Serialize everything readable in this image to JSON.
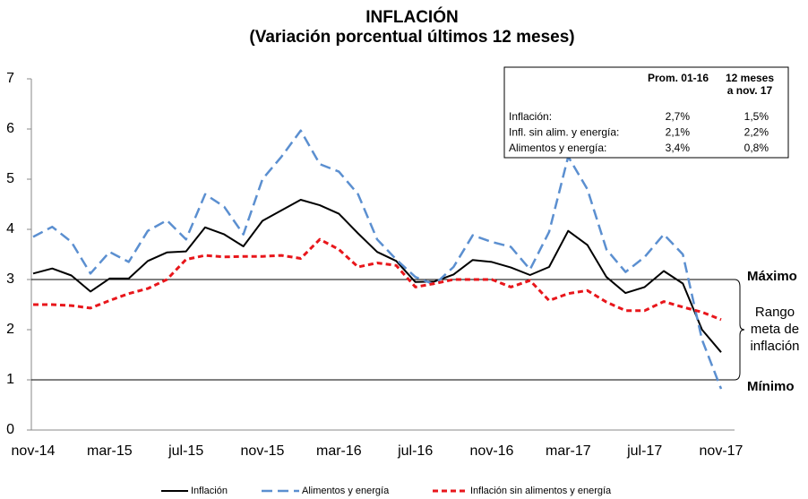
{
  "chart_data": {
    "type": "line",
    "title": "INFLACIÓN",
    "subtitle": "(Variación porcentual últimos 12 meses)",
    "categories": [
      "nov-14",
      null,
      null,
      null,
      "mar-15",
      null,
      null,
      null,
      "jul-15",
      null,
      null,
      null,
      "nov-15",
      null,
      null,
      null,
      "mar-16",
      null,
      null,
      null,
      "jul-16",
      null,
      null,
      null,
      "nov-16",
      null,
      null,
      null,
      "mar-17",
      null,
      null,
      null,
      "jul-17",
      null,
      null,
      null,
      "nov-17"
    ],
    "series": [
      {
        "name": "Inflación",
        "color": "#000000",
        "dash": "solid",
        "values": [
          3.12,
          3.22,
          3.08,
          2.76,
          3.02,
          3.02,
          3.37,
          3.54,
          3.56,
          4.04,
          3.9,
          3.66,
          4.17,
          4.38,
          4.59,
          4.48,
          4.31,
          3.92,
          3.55,
          3.37,
          2.95,
          2.96,
          3.1,
          3.39,
          3.35,
          3.24,
          3.09,
          3.25,
          3.97,
          3.69,
          3.05,
          2.73,
          2.85,
          3.17,
          2.92,
          2.0,
          1.55
        ]
      },
      {
        "name": "Alimentos y energía",
        "color": "#5b8fd0",
        "dash": "long",
        "values": [
          3.85,
          4.05,
          3.75,
          3.12,
          3.55,
          3.35,
          3.97,
          4.18,
          3.8,
          4.7,
          4.45,
          3.9,
          5.0,
          5.45,
          5.97,
          5.3,
          5.15,
          4.7,
          3.8,
          3.4,
          3.05,
          2.9,
          3.25,
          3.88,
          3.75,
          3.65,
          3.2,
          3.95,
          5.45,
          4.8,
          3.6,
          3.15,
          3.45,
          3.9,
          3.5,
          1.8,
          0.82
        ]
      },
      {
        "name": "Inflación sin alimentos y energía",
        "color": "#e8161b",
        "dash": "short",
        "values": [
          2.5,
          2.5,
          2.48,
          2.43,
          2.58,
          2.72,
          2.82,
          3.0,
          3.4,
          3.48,
          3.45,
          3.46,
          3.46,
          3.48,
          3.42,
          3.8,
          3.6,
          3.25,
          3.33,
          3.28,
          2.85,
          2.92,
          3.0,
          3.0,
          3.0,
          2.85,
          2.98,
          2.58,
          2.72,
          2.78,
          2.55,
          2.38,
          2.38,
          2.56,
          2.45,
          2.35,
          2.2
        ]
      }
    ],
    "ylim": [
      0,
      7
    ],
    "yticks": [
      0,
      1,
      2,
      3,
      4,
      5,
      6,
      7
    ],
    "reference_lines": [
      {
        "value": 3,
        "label": "Máximo"
      },
      {
        "value": 1,
        "label": "Mínimo"
      }
    ],
    "range_label": [
      "Rango",
      "meta de",
      "inflación"
    ],
    "legend": "bottom",
    "table": {
      "header": [
        "Prom. 01-16",
        [
          "12 meses",
          "a nov. 17"
        ]
      ],
      "rows": [
        [
          "Inflación:",
          "2,7%",
          "1,5%"
        ],
        [
          "Infl. sin alim. y energía:",
          "2,1%",
          "2,2%"
        ],
        [
          "Alimentos y energía:",
          "3,4%",
          "0,8%"
        ]
      ]
    }
  }
}
